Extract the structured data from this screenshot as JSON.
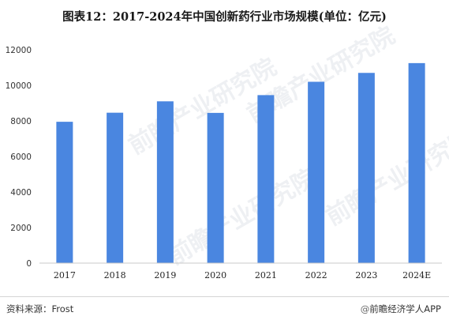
{
  "title": "图表12：2017-2024年中国创新药行业市场规模(单位：亿元)",
  "footer": {
    "source": "资料来源：Frost",
    "brand": "前瞻经济学人APP",
    "brand_mark": "@"
  },
  "watermark": "前瞻产业研究院",
  "colors": {
    "bar": "#4a86e0",
    "axis": "#c8c8c8"
  },
  "chart_data": {
    "type": "bar",
    "title": "图表12：2017-2024年中国创新药行业市场规模(单位：亿元)",
    "xlabel": "",
    "ylabel": "",
    "categories": [
      "2017",
      "2018",
      "2019",
      "2020",
      "2021",
      "2022",
      "2023",
      "2024E"
    ],
    "values": [
      7950,
      8460,
      9100,
      8450,
      9450,
      10200,
      10700,
      11250
    ],
    "ylim": [
      0,
      12000
    ],
    "yticks": [
      0,
      2000,
      4000,
      6000,
      8000,
      10000,
      12000
    ],
    "grid": false,
    "legend": "none"
  }
}
